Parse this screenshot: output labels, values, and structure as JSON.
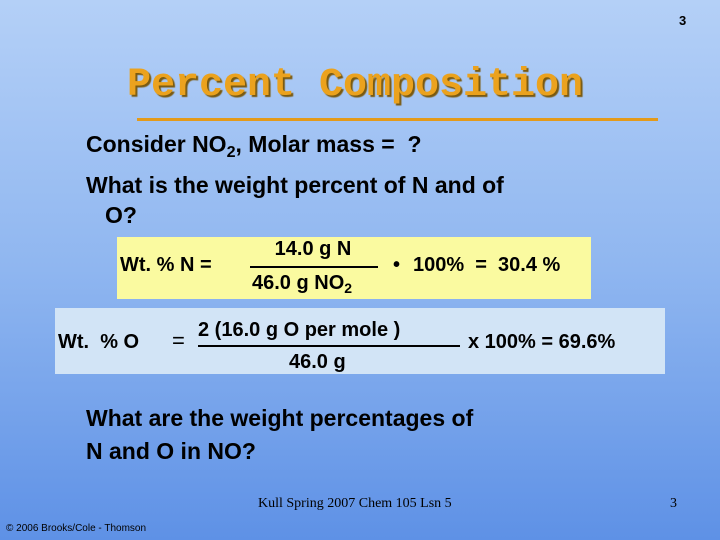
{
  "slide_number": "3",
  "title": "Percent Composition",
  "question1": {
    "before": "Consider NO",
    "sub": "2",
    "after": ", Molar mass =  ?"
  },
  "question2": [
    "What is the weight percent of N and of",
    "O?"
  ],
  "equation_n": {
    "lhs": "Wt. % N =",
    "numerator": "14.0 g N",
    "denominator": "46.0 g NO",
    "denominator_sub": "2",
    "operator": "•",
    "rhs": "100%  =  30.4 %"
  },
  "equation_o": {
    "lhs": "Wt.  % O",
    "equals": "=",
    "numerator": "2 (16.0 g O per mole )",
    "denominator": "46.0 g",
    "rhs": "x 100% = 69.6%"
  },
  "question3": [
    "What are the weight percentages of",
    "N and O in NO?"
  ],
  "footer": {
    "center": "Kull Spring 2007 Chem 105 Lsn 5",
    "page": "3",
    "copyright": "© 2006 Brooks/Cole - Thomson"
  }
}
